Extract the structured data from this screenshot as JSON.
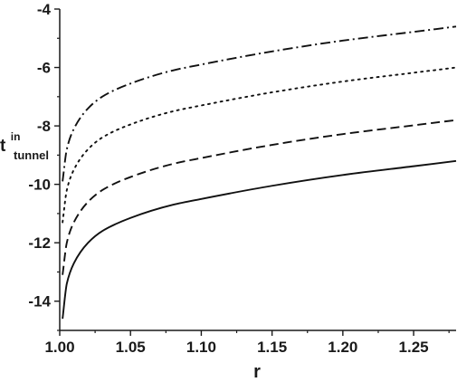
{
  "chart_data": {
    "type": "line",
    "title": "",
    "xlabel": "r",
    "ylabel": {
      "main": "t",
      "superscript": "in",
      "subscript": "tunnel"
    },
    "xlim": [
      1.0,
      1.28
    ],
    "ylim": [
      -15.0,
      -4.0
    ],
    "x_ticks": [
      1.0,
      1.05,
      1.1,
      1.15,
      1.2,
      1.25
    ],
    "x_tick_labels": [
      "1.00",
      "1.05",
      "1.10",
      "1.15",
      "1.20",
      "1.25"
    ],
    "y_ticks": [
      -14,
      -12,
      -10,
      -8,
      -6,
      -4
    ],
    "y_tick_labels": [
      "-14",
      "-12",
      "-10",
      "-8",
      "-6",
      "-4"
    ],
    "grid": false,
    "legend": "none",
    "series": [
      {
        "style": "dash-dot",
        "color": "#111111",
        "x": [
          1.002,
          1.005,
          1.01,
          1.02,
          1.03,
          1.05,
          1.08,
          1.1,
          1.15,
          1.2,
          1.25,
          1.28
        ],
        "y": [
          -9.9,
          -8.8,
          -8.1,
          -7.4,
          -7.0,
          -6.55,
          -6.1,
          -5.9,
          -5.45,
          -5.08,
          -4.78,
          -4.6
        ]
      },
      {
        "style": "dotted",
        "color": "#111111",
        "x": [
          1.002,
          1.005,
          1.01,
          1.02,
          1.03,
          1.05,
          1.08,
          1.1,
          1.15,
          1.2,
          1.25,
          1.28
        ],
        "y": [
          -11.3,
          -10.2,
          -9.5,
          -8.8,
          -8.4,
          -7.95,
          -7.5,
          -7.3,
          -6.85,
          -6.48,
          -6.18,
          -6.0
        ]
      },
      {
        "style": "dashed",
        "color": "#111111",
        "x": [
          1.002,
          1.005,
          1.01,
          1.02,
          1.03,
          1.05,
          1.08,
          1.1,
          1.15,
          1.2,
          1.25,
          1.28
        ],
        "y": [
          -13.1,
          -12.0,
          -11.3,
          -10.6,
          -10.2,
          -9.75,
          -9.3,
          -9.1,
          -8.65,
          -8.28,
          -7.98,
          -7.8
        ]
      },
      {
        "style": "solid",
        "color": "#111111",
        "x": [
          1.002,
          1.005,
          1.01,
          1.02,
          1.03,
          1.05,
          1.08,
          1.1,
          1.15,
          1.2,
          1.25,
          1.28
        ],
        "y": [
          -14.6,
          -13.4,
          -12.7,
          -12.0,
          -11.6,
          -11.15,
          -10.7,
          -10.5,
          -10.05,
          -9.68,
          -9.38,
          -9.2
        ]
      }
    ]
  }
}
